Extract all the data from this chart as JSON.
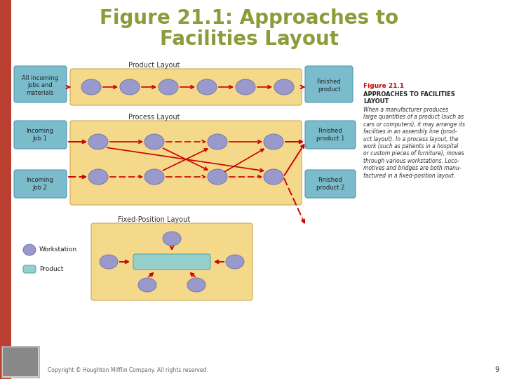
{
  "title_line1": "Figure 21.1: Approaches to",
  "title_line2": "Facilities Layout",
  "title_color": "#8B9D3A",
  "bg_color": "#FFFFFF",
  "left_stripe_color": "#B94030",
  "yellow_box_color": "#F5D98B",
  "teal_box_color": "#96D0CB",
  "workstation_color": "#9999CC",
  "arrow_color": "#CC0000",
  "input_box_color": "#7BBCCC",
  "fig_title_color": "#CC0000",
  "copyright_text": "Copyright © Houghton Mifflin Company. All rights reserved.",
  "page_number": "9",
  "product_layout_label": "Product Layout",
  "process_layout_label": "Process Layout",
  "fixed_layout_label": "Fixed-Position Layout",
  "fig_ref_title": "Figure 21.1",
  "fig_ref_subtitle": "APPROACHES TO FACILITIES\nLAYOUT",
  "fig_ref_body": "When a manufacturer produces\nlarge quantities of a product (such as\ncars or computers), it may arrange its\nfacilities in an assembly line (prod-\nuct layout). In a process layout, the\nwork (such as patients in a hospital\nor custom pieces of furniture), moves\nthrough various workstations. Loco-\nmotives and bridges are both manu-\nfactured in a fixed-position layout."
}
